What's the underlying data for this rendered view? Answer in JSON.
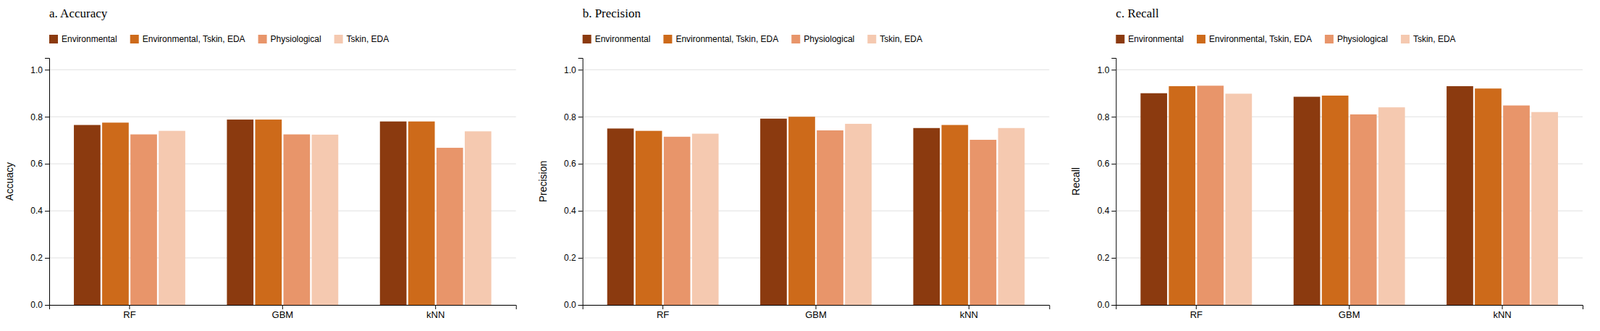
{
  "chart_data": [
    {
      "type": "bar",
      "title": "a. Accuracy",
      "y_label": "Accuacy",
      "categories": [
        "RF",
        "GBM",
        "kNN"
      ],
      "series": [
        {
          "name": "Environmental",
          "color": "#8B3A0F",
          "values": [
            0.765,
            0.788,
            0.78
          ]
        },
        {
          "name": "Environmental, Tskin, EDA",
          "color": "#CD6A1A",
          "values": [
            0.775,
            0.788,
            0.78
          ]
        },
        {
          "name": "Physiological",
          "color": "#E8956A",
          "values": [
            0.725,
            0.725,
            0.668
          ]
        },
        {
          "name": "Tskin, EDA",
          "color": "#F5C9B0",
          "values": [
            0.74,
            0.724,
            0.738
          ]
        }
      ],
      "ylim": [
        0.0,
        1.05
      ],
      "yticks": [
        {
          "value": 0.0,
          "label": "0.0"
        },
        0.2,
        0.4,
        0.6,
        0.8,
        {
          "value": 1.0,
          "label": "1.0"
        }
      ],
      "grid": true,
      "legend": "upper left"
    },
    {
      "type": "bar",
      "title": "b. Precision",
      "y_label": "Precision",
      "categories": [
        "RF",
        "GBM",
        "kNN"
      ],
      "series": [
        {
          "name": "Environmental",
          "color": "#8B3A0F",
          "values": [
            0.75,
            0.792,
            0.752
          ]
        },
        {
          "name": "Environmental, Tskin, EDA",
          "color": "#CD6A1A",
          "values": [
            0.74,
            0.8,
            0.765
          ]
        },
        {
          "name": "Physiological",
          "color": "#E8956A",
          "values": [
            0.715,
            0.742,
            0.702
          ]
        },
        {
          "name": "Tskin, EDA",
          "color": "#F5C9B0",
          "values": [
            0.728,
            0.77,
            0.752
          ]
        }
      ],
      "ylim": [
        0.0,
        1.05
      ],
      "yticks": [
        {
          "value": 0.0,
          "label": "0.0"
        },
        0.2,
        0.4,
        0.6,
        0.8,
        {
          "value": 1.0,
          "label": "1.0"
        }
      ],
      "grid": true,
      "legend": "upper left"
    },
    {
      "type": "bar",
      "title": "c. Recall",
      "y_label": "Recall",
      "categories": [
        "RF",
        "GBM",
        "kNN"
      ],
      "series": [
        {
          "name": "Environmental",
          "color": "#8B3A0F",
          "values": [
            0.9,
            0.885,
            0.93
          ]
        },
        {
          "name": "Environmental, Tskin, EDA",
          "color": "#CD6A1A",
          "values": [
            0.93,
            0.89,
            0.92
          ]
        },
        {
          "name": "Physiological",
          "color": "#E8956A",
          "values": [
            0.932,
            0.81,
            0.848
          ]
        },
        {
          "name": "Tskin, EDA",
          "color": "#F5C9B0",
          "values": [
            0.898,
            0.84,
            0.82
          ]
        }
      ],
      "ylim": [
        0.0,
        1.05
      ],
      "yticks": [
        {
          "value": 0.0,
          "label": "0.0"
        },
        0.2,
        0.4,
        0.6,
        0.8,
        {
          "value": 1.0,
          "label": "1.0"
        }
      ],
      "grid": true,
      "legend": "upper left"
    }
  ]
}
